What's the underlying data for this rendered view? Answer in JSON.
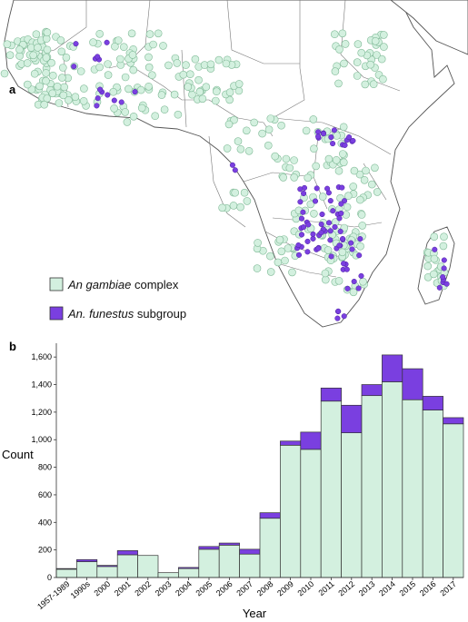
{
  "panel_a": {
    "letter": "a",
    "legend": {
      "gambiae_prefix": "An gambiae",
      "gambiae_suffix": " complex",
      "funestus_prefix": "An. funestus",
      "funestus_suffix": " subgroup"
    },
    "colors": {
      "gambiae": "#d3f0df",
      "gambiae_edge": "#7fb996",
      "funestus": "#7a3fe0",
      "funestus_edge": "#4b1fa0"
    }
  },
  "panel_b": {
    "letter": "b"
  },
  "chart_data": {
    "type": "bar",
    "stacked": true,
    "categories": [
      "1957-1989",
      "1990s",
      "2000",
      "2001",
      "2002",
      "2003",
      "2004",
      "2005",
      "2006",
      "2007",
      "2008",
      "2009",
      "2010",
      "2011",
      "2012",
      "2013",
      "2014",
      "2015",
      "2016",
      "2017"
    ],
    "series": [
      {
        "name": "An gambiae complex",
        "color": "#d3f0df",
        "values": [
          60,
          115,
          80,
          165,
          160,
          35,
          65,
          205,
          235,
          170,
          430,
          960,
          930,
          1280,
          1050,
          1320,
          1420,
          1290,
          1215,
          1115
        ]
      },
      {
        "name": "An. funestus subgroup",
        "color": "#7a3fe0",
        "values": [
          5,
          15,
          8,
          30,
          0,
          0,
          8,
          20,
          15,
          35,
          40,
          30,
          125,
          95,
          200,
          80,
          195,
          225,
          100,
          45
        ]
      }
    ],
    "xlabel": "Year",
    "ylabel": "Count",
    "ylim": [
      0,
      1700
    ],
    "yticks": [
      "0",
      "200",
      "400",
      "600",
      "800",
      "1,000",
      "1,200",
      "1,400",
      "1,600"
    ],
    "ytick_values": [
      0,
      200,
      400,
      600,
      800,
      1000,
      1200,
      1400,
      1600
    ]
  }
}
